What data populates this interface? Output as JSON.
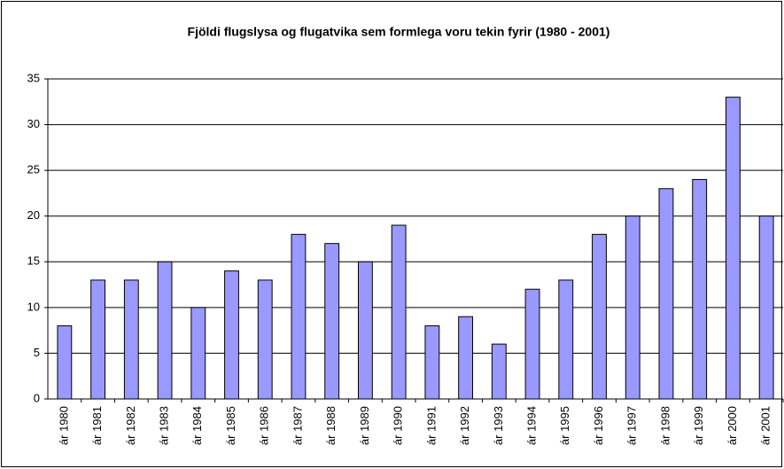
{
  "chart_data": {
    "type": "bar",
    "title": "Fjöldi flugslysa og flugatvika sem formlega voru tekin fyrir (1980 - 2001)",
    "categories": [
      "ár 1980",
      "ár 1981",
      "ár 1982",
      "ár 1983",
      "ár 1984",
      "ár 1985",
      "ár 1986",
      "ár 1987",
      "ár 1988",
      "ár 1989",
      "ár 1990",
      "ár 1991",
      "ár 1992",
      "ár 1993",
      "ár 1994",
      "ár 1995",
      "ár 1996",
      "ár 1997",
      "ár 1998",
      "ár 1999",
      "ár 2000",
      "ár 2001"
    ],
    "values": [
      8,
      13,
      13,
      15,
      10,
      14,
      13,
      18,
      17,
      15,
      19,
      8,
      9,
      6,
      12,
      13,
      18,
      20,
      23,
      24,
      33,
      20
    ],
    "color": "#9999ff",
    "ylim": [
      0,
      35
    ],
    "yticks": [
      0,
      5,
      10,
      15,
      20,
      25,
      30,
      35
    ],
    "grid": true
  }
}
